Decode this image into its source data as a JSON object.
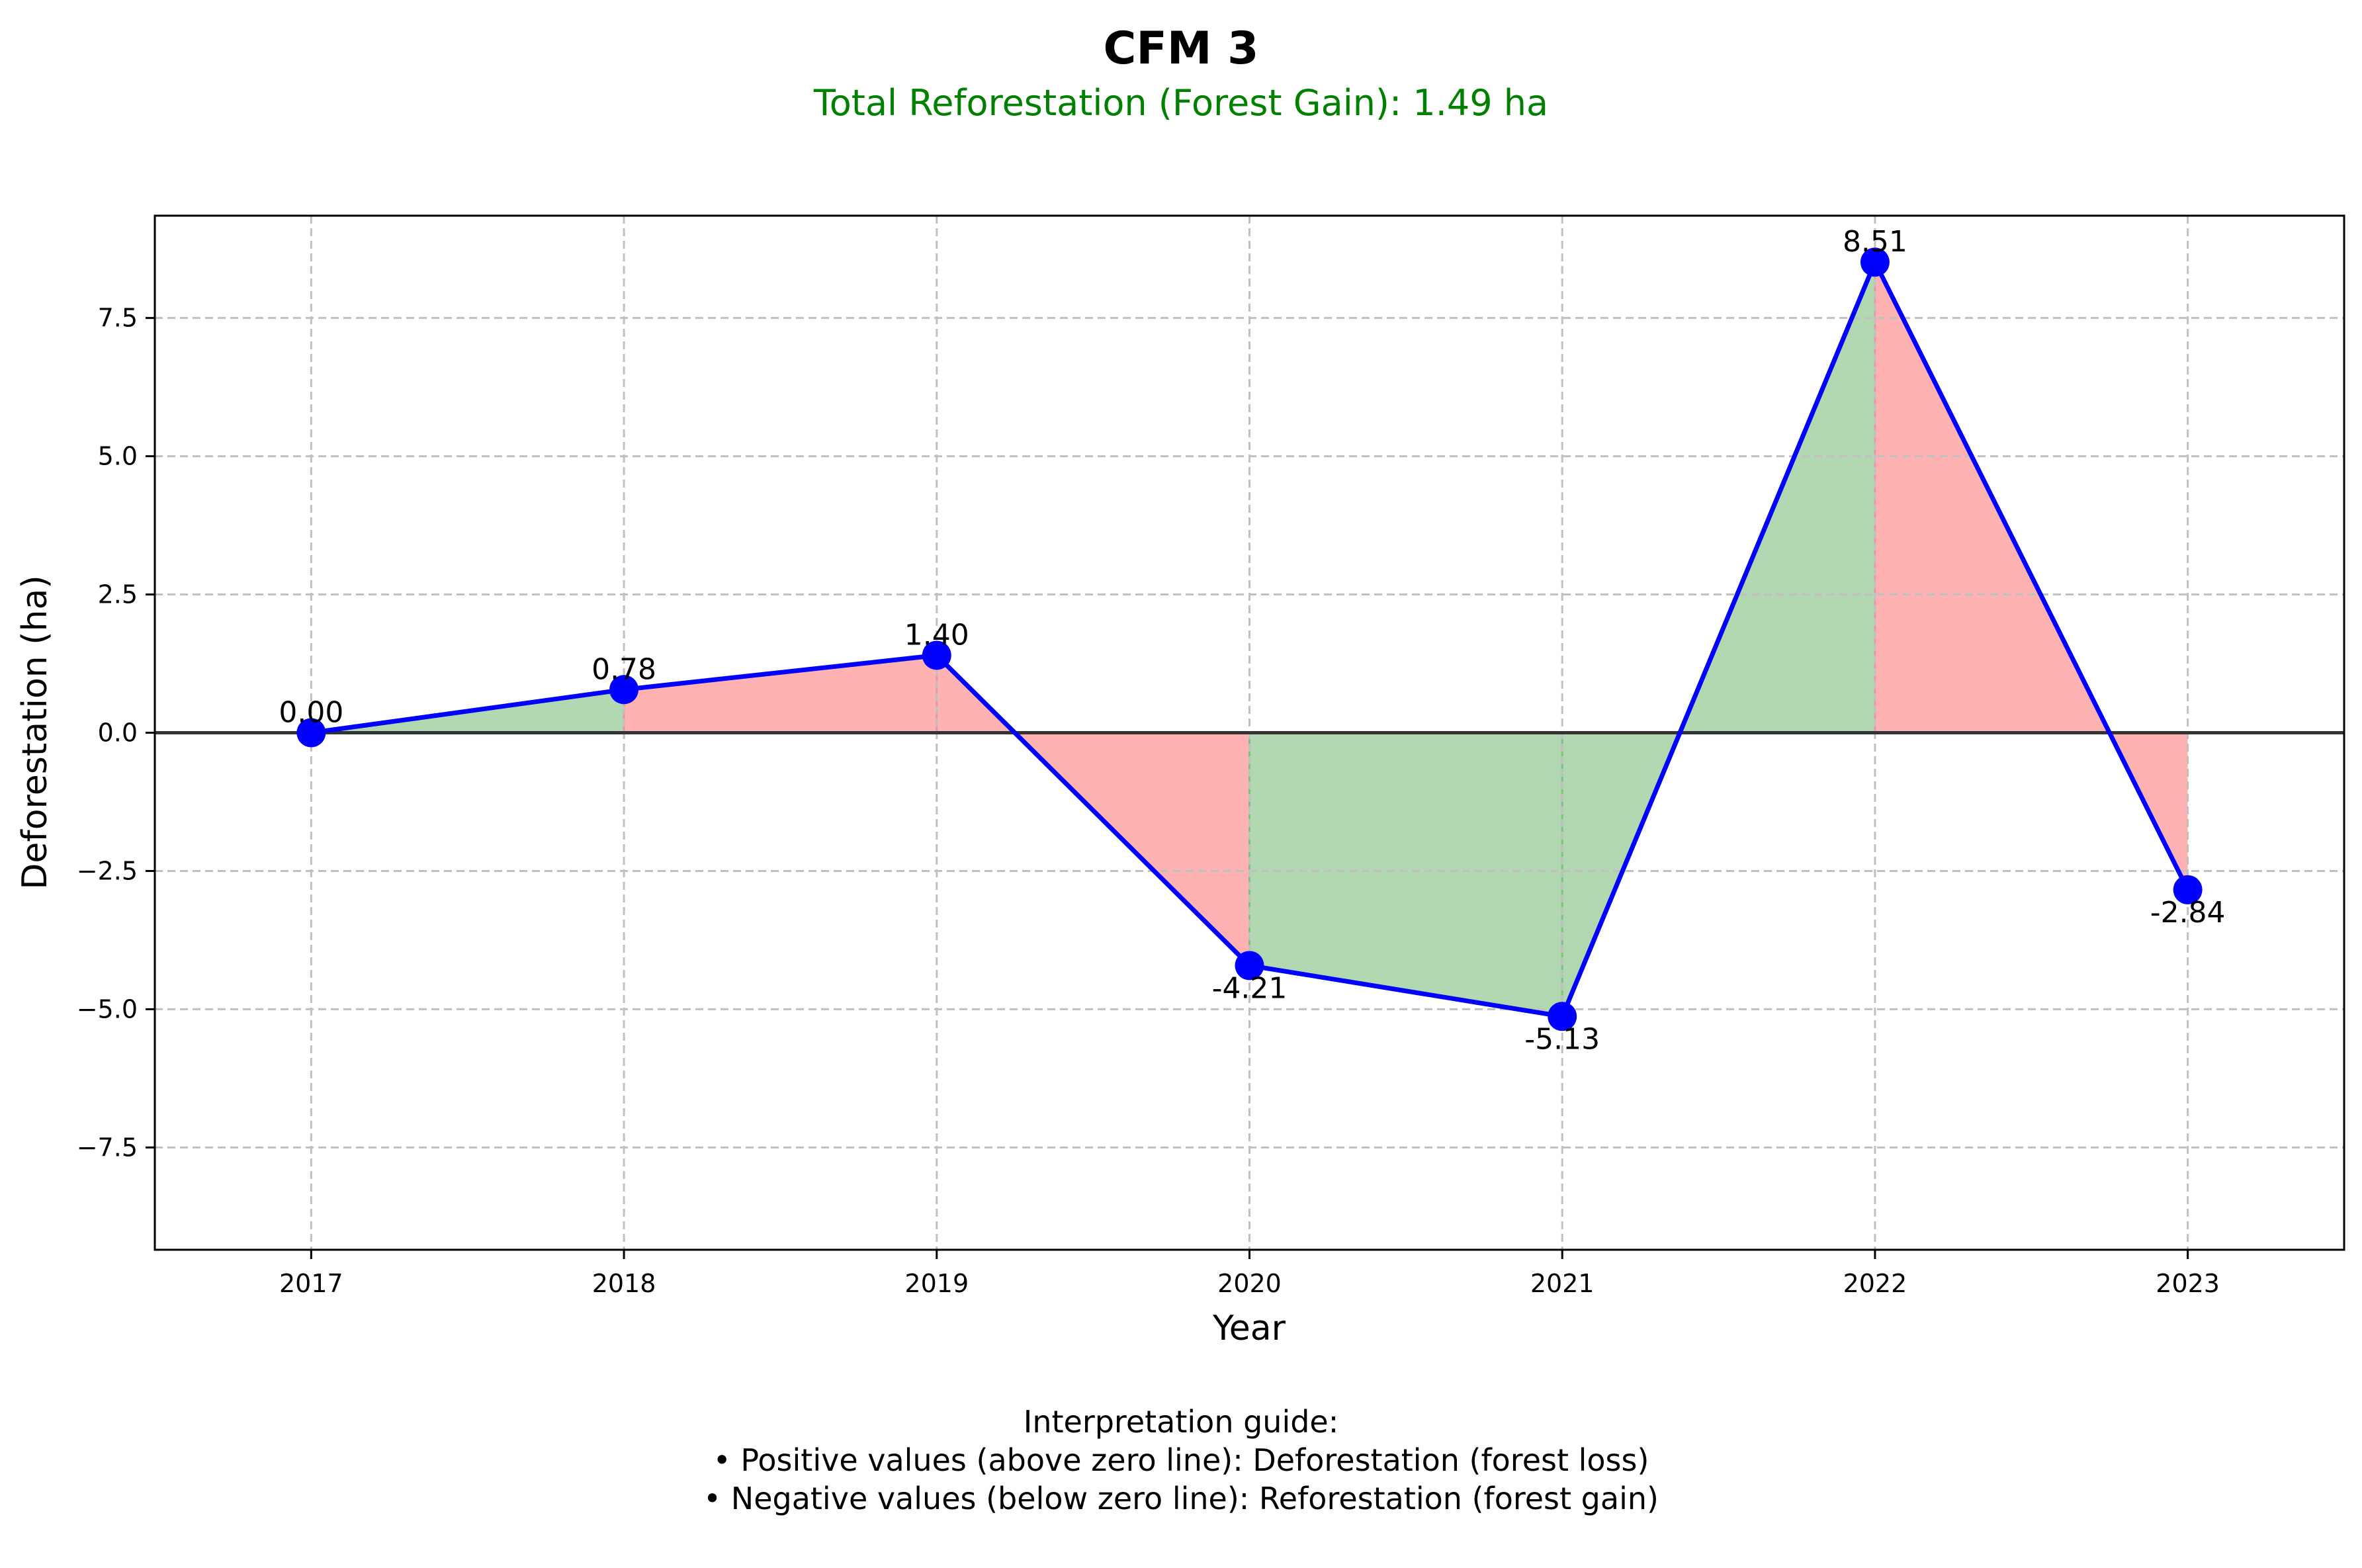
{
  "chart_data": {
    "type": "line",
    "title": "CFM 3",
    "subtitle": "Total Reforestation (Forest Gain): 1.49 ha",
    "xlabel": "Year",
    "ylabel": "Deforestation (ha)",
    "categories": [
      "2017",
      "2018",
      "2019",
      "2020",
      "2021",
      "2022",
      "2023"
    ],
    "values": [
      0.0,
      0.78,
      1.4,
      -4.21,
      -5.13,
      8.51,
      -2.84
    ],
    "point_labels": [
      "0.00",
      "0.78",
      "1.40",
      "-4.21",
      "-5.13",
      "8.51",
      "-2.84"
    ],
    "ylim": [
      -9.35,
      9.35
    ],
    "yticks": [
      -7.5,
      -5.0,
      -2.5,
      0.0,
      2.5,
      5.0,
      7.5
    ],
    "ytick_labels": [
      "−7.5",
      "−5.0",
      "−2.5",
      "0.0",
      "2.5",
      "5.0",
      "7.5"
    ],
    "grid": true,
    "fill_segments": [
      {
        "from": 0,
        "to": 1,
        "meaning": "gain"
      },
      {
        "from": 1,
        "to": 2,
        "meaning": "loss"
      },
      {
        "from": 2,
        "to": 3,
        "meaning": "loss"
      },
      {
        "from": 3,
        "to": 4,
        "meaning": "gain"
      },
      {
        "from": 4,
        "to": 5,
        "meaning": "gain"
      },
      {
        "from": 5,
        "to": 6,
        "meaning": "loss"
      }
    ],
    "guide": {
      "line1": "Interpretation guide:",
      "line2": "• Positive values (above zero line): Deforestation (forest loss)",
      "line3": "• Negative values (below zero line): Reforestation (forest gain)"
    },
    "colors": {
      "line": "#0000ff",
      "marker": "#0000ff",
      "gain_fill": "#b2d8b2",
      "loss_fill": "#ffb2b2",
      "subtitle": "#008000",
      "grid": "#c0c0c0",
      "zero_line": "#333333"
    }
  }
}
